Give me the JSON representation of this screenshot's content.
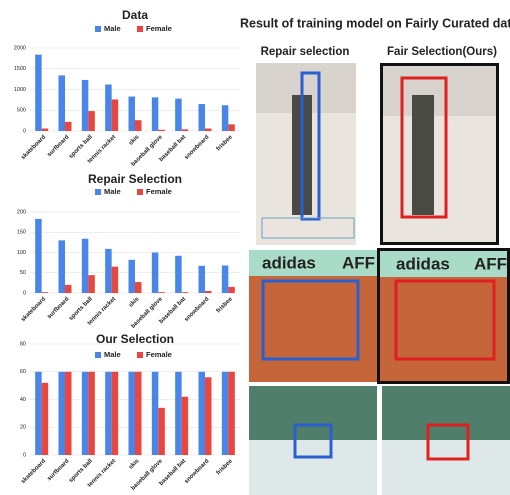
{
  "chart_data": [
    {
      "type": "bar",
      "title": "Data",
      "categories": [
        "skateboard",
        "surfboard",
        "sports ball",
        "tennis racket",
        "skis",
        "baseball glove",
        "baseball bat",
        "snowboard",
        "frisbee"
      ],
      "series": [
        {
          "name": "Male",
          "color": "#4a86e8",
          "values": [
            1840,
            1340,
            1230,
            1120,
            830,
            810,
            780,
            650,
            620
          ]
        },
        {
          "name": "Female",
          "color": "#e8463f",
          "values": [
            60,
            220,
            480,
            760,
            260,
            30,
            40,
            60,
            160
          ]
        }
      ],
      "ylim": [
        0,
        2000
      ],
      "yticks": [
        0,
        500,
        1000,
        1500,
        2000
      ],
      "grid": true,
      "legend": "top"
    },
    {
      "type": "bar",
      "title": "Repair Selection",
      "categories": [
        "skateboard",
        "surfboard",
        "sports ball",
        "tennis racket",
        "skis",
        "baseball glove",
        "baseball bat",
        "snowboard",
        "frisbee"
      ],
      "series": [
        {
          "name": "Male",
          "color": "#4a86e8",
          "values": [
            183,
            130,
            134,
            109,
            82,
            100,
            92,
            67,
            68
          ]
        },
        {
          "name": "Female",
          "color": "#e8463f",
          "values": [
            2,
            20,
            44,
            65,
            27,
            2,
            2,
            5,
            15
          ]
        }
      ],
      "ylim": [
        0,
        200
      ],
      "yticks": [
        0,
        50,
        100,
        150,
        200
      ],
      "grid": true,
      "legend": "top"
    },
    {
      "type": "bar",
      "title": "Our Selection",
      "categories": [
        "skateboard",
        "surfboard",
        "sports ball",
        "tennis racket",
        "skis",
        "baseball glove",
        "baseball bat",
        "snowboard",
        "frisbee"
      ],
      "series": [
        {
          "name": "Male",
          "color": "#4a86e8",
          "values": [
            60,
            60,
            60,
            60,
            60,
            60,
            60,
            60,
            60
          ]
        },
        {
          "name": "Female",
          "color": "#e8463f",
          "values": [
            52,
            60,
            60,
            60,
            60,
            34,
            42,
            56,
            60
          ]
        }
      ],
      "ylim": [
        0,
        80
      ],
      "yticks": [
        0,
        20,
        40,
        60,
        80
      ],
      "grid": true,
      "legend": "top"
    }
  ],
  "photo_panel": {
    "title": "Result of training model on Fairly Curated data",
    "columns": [
      "Repair selection",
      "Fair Selection(Ours)"
    ],
    "banner_texts": [
      "adidas",
      "AFF"
    ]
  }
}
